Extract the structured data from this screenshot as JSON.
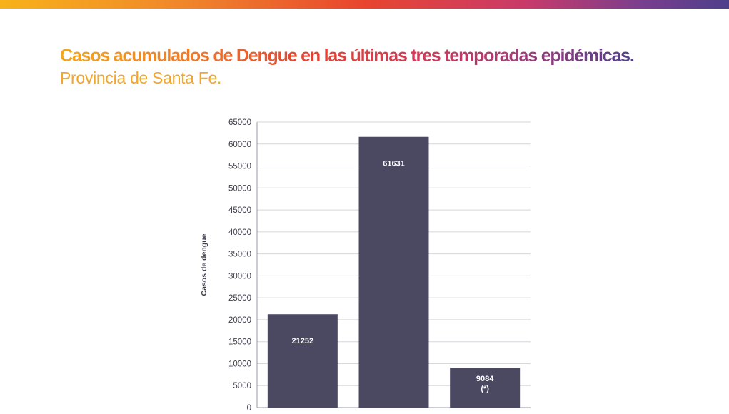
{
  "header": {
    "title": "Casos acumulados de Dengue en las últimas tres temporadas epidémicas.",
    "subtitle": "Provincia de Santa Fe."
  },
  "colors": {
    "bar": "#4b4862",
    "grid": "#d6d6dc",
    "text": "#3d3d4a",
    "subtitle": "#f2a62a"
  },
  "chart_data": {
    "type": "bar",
    "ylabel": "Casos de dengue",
    "ylim": [
      0,
      65000
    ],
    "yticks": [
      0,
      5000,
      10000,
      15000,
      20000,
      25000,
      30000,
      35000,
      40000,
      45000,
      50000,
      55000,
      60000,
      65000
    ],
    "grid": true,
    "values": [
      21252,
      61631,
      9084
    ],
    "data_labels": [
      "21252",
      "61631",
      "9084"
    ],
    "data_label_notes": [
      "",
      "",
      "(*)"
    ]
  }
}
